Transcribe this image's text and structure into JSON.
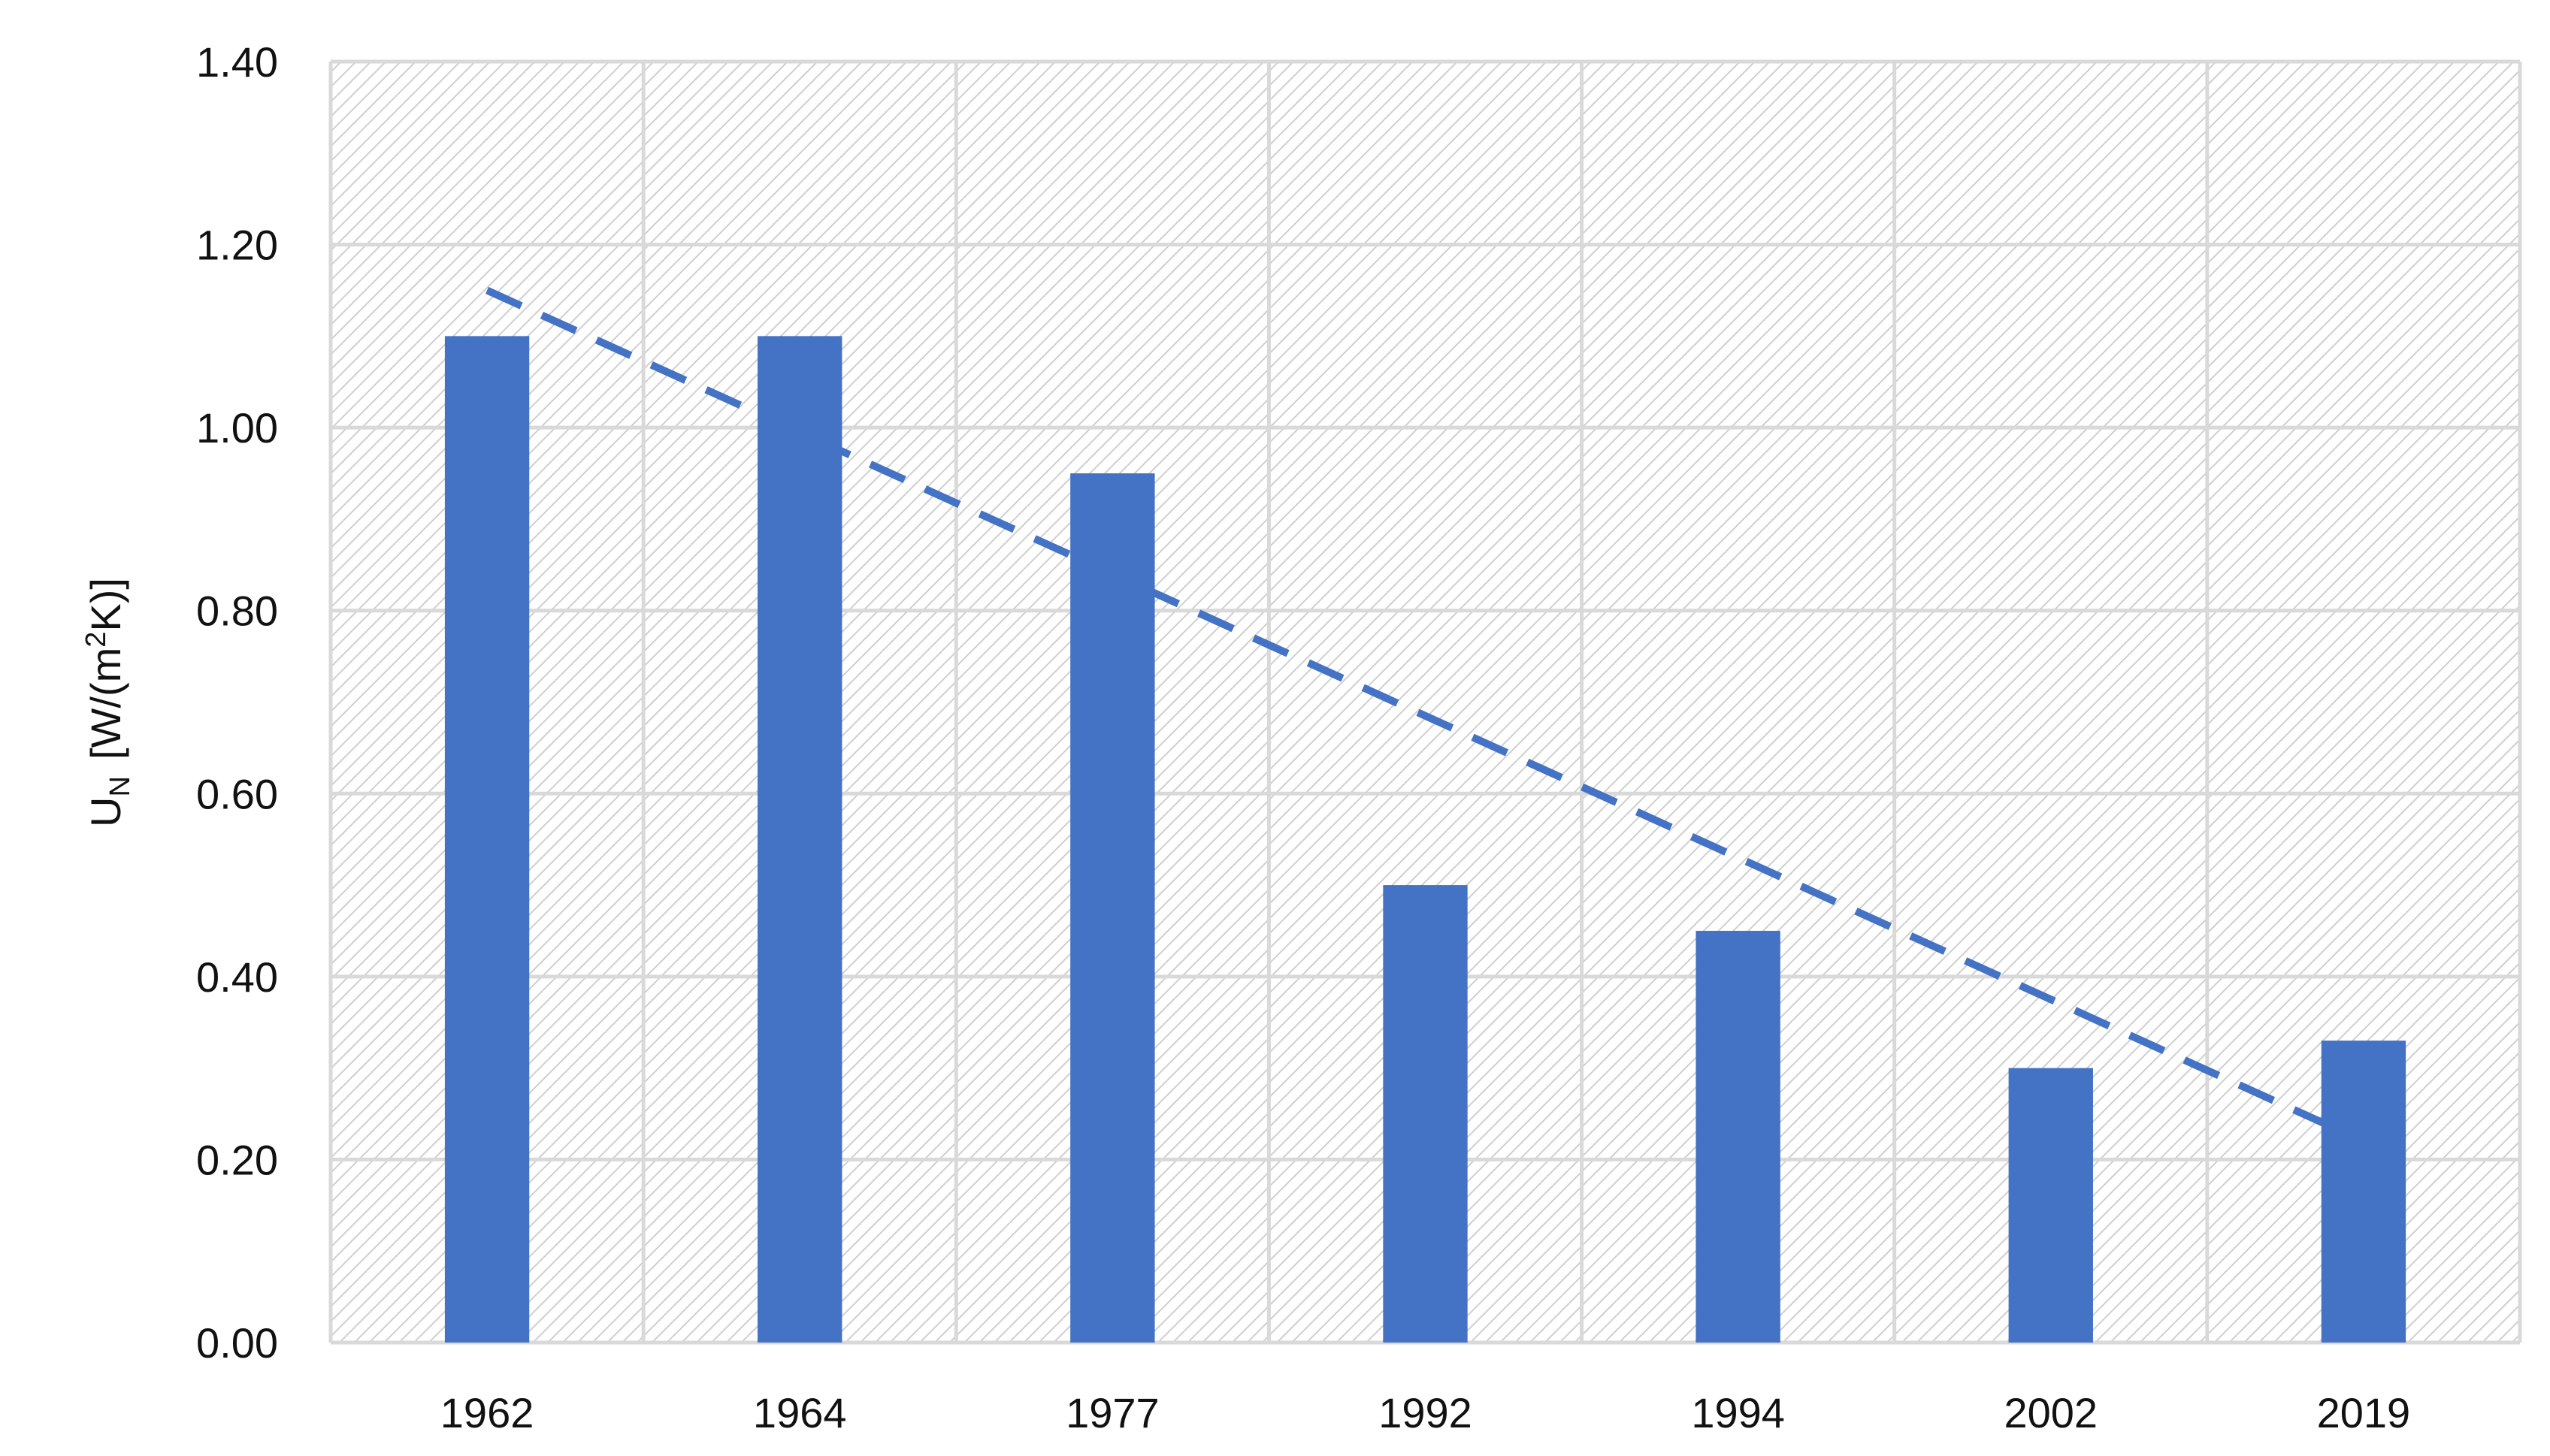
{
  "chart_data": {
    "type": "bar",
    "categories": [
      "1962",
      "1964",
      "1977",
      "1992",
      "1994",
      "2002",
      "2019"
    ],
    "values": [
      1.1,
      1.1,
      0.95,
      0.5,
      0.45,
      0.3,
      0.33
    ],
    "ylabel": {
      "main": "U",
      "subscript": "N",
      "unit_pre": "[W/(m",
      "superscript": "2",
      "unit_post": "K)]"
    },
    "y_ticks": [
      "0.00",
      "0.20",
      "0.40",
      "0.60",
      "0.80",
      "1.00",
      "1.20",
      "1.40"
    ],
    "ylim": [
      0,
      1.4
    ],
    "grid": true,
    "background": "diagonal hatching",
    "trendline": {
      "style": "dashed",
      "type": "linear",
      "start": 1.15,
      "end": 0.22
    },
    "colors": {
      "bar": "#4472C4",
      "trendline": "#4472C4",
      "grid": "#d9d9d9",
      "hatch": "#cfcfcf"
    }
  }
}
